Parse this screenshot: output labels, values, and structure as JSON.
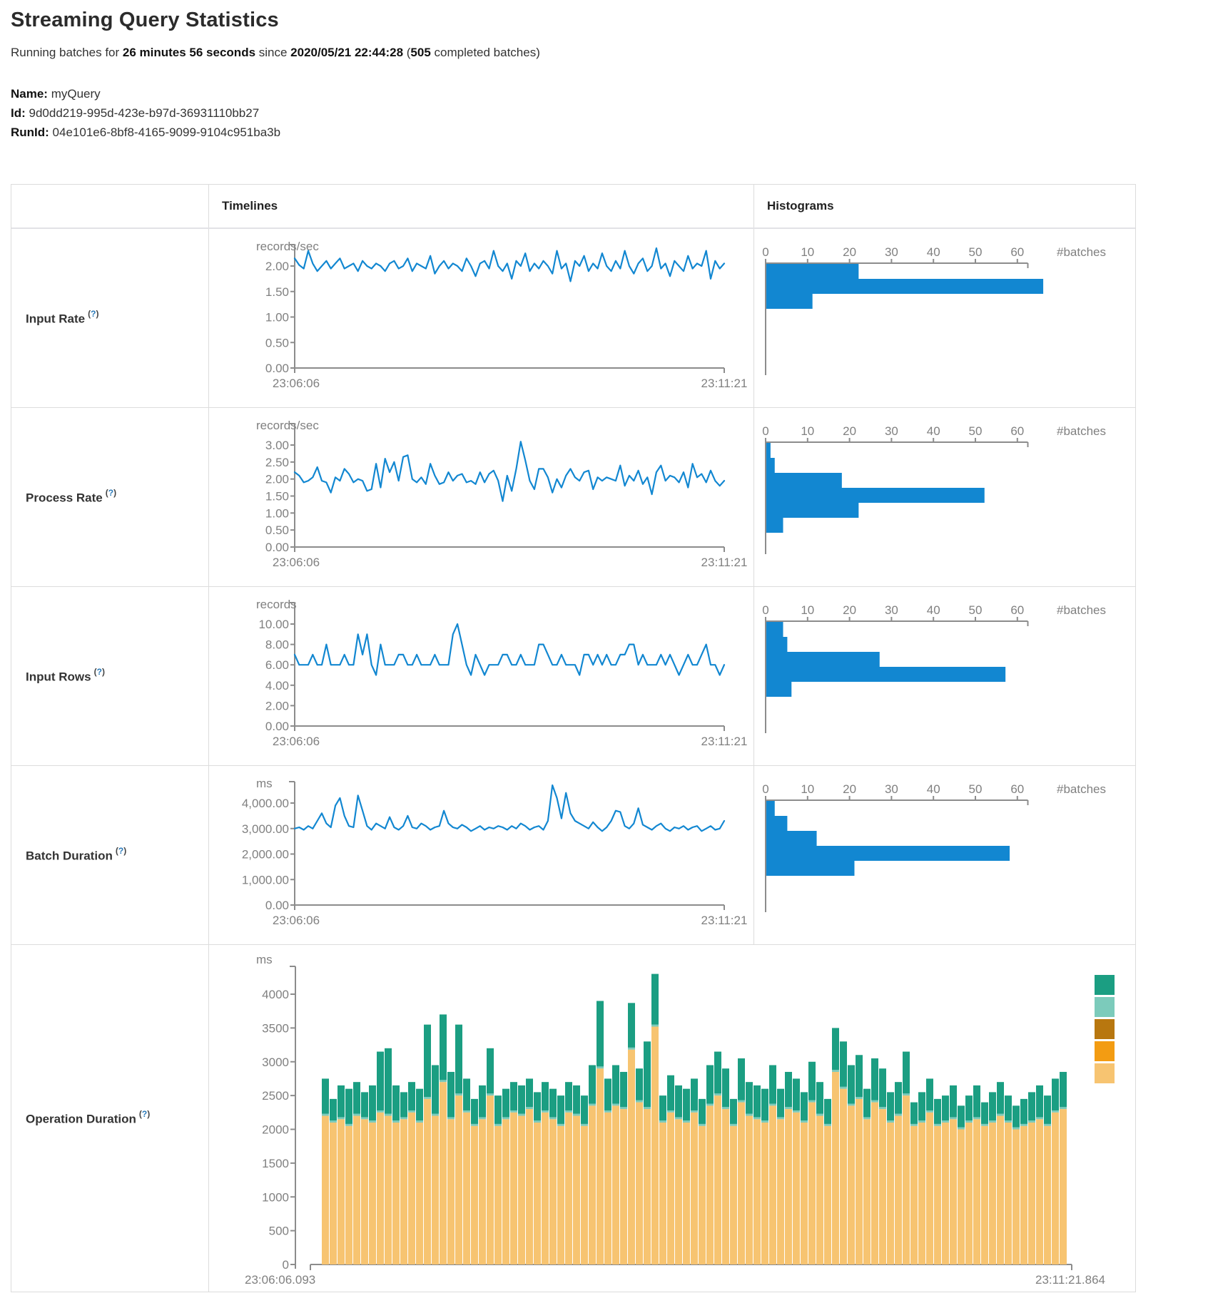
{
  "page": {
    "title": "Streaming Query Statistics"
  },
  "summary": {
    "prefix": "Running batches for ",
    "duration": "26 minutes 56 seconds",
    "mid": " since ",
    "start_time": "2020/05/21 22:44:28",
    "paren": " (",
    "batch_count": "505",
    "suffix": " completed batches)"
  },
  "query": {
    "name_label": "Name:",
    "name": " myQuery",
    "id_label": "Id:",
    "id": " 9d0dd219-995d-423e-b97d-36931110bb27",
    "runid_label": "RunId:",
    "runid": " 04e101e6-8bf8-4165-9099-9104c951ba3b"
  },
  "table": {
    "col_timelines": "Timelines",
    "col_histograms": "Histograms"
  },
  "help": {
    "open": "(",
    "q": "?",
    "close": ")"
  },
  "colors": {
    "line_blue": "#1287d1",
    "bar_blue": "#1287d1",
    "axis": "#8c8c8c",
    "tick_text": "#808080",
    "teal": "#1b9e82",
    "light_teal": "#7ccbbb",
    "brown": "#b8770f",
    "orange": "#f39c12",
    "tan": "#f7c471",
    "border": "#dcdcdc"
  },
  "rows": [
    {
      "label": "Input Rate",
      "timeline": {
        "type": "line",
        "unit": "records/sec",
        "x_start": "23:06:06",
        "x_end": "23:11:21",
        "y_ticks": [
          {
            "v": 2,
            "label": "2.00"
          },
          {
            "v": 1.5,
            "label": "1.50"
          },
          {
            "v": 1,
            "label": "1.00"
          },
          {
            "v": 0.5,
            "label": "0.50"
          },
          {
            "v": 0,
            "label": "0.00"
          }
        ],
        "y_top": 2,
        "values": [
          2.15,
          2.02,
          1.95,
          2.3,
          2.05,
          1.9,
          2.0,
          2.1,
          1.95,
          2.05,
          2.15,
          1.95,
          2.0,
          2.05,
          1.9,
          2.1,
          2.0,
          1.95,
          2.05,
          2.0,
          1.9,
          2.05,
          2.1,
          1.95,
          2.0,
          2.15,
          1.9,
          2.05,
          2.0,
          1.95,
          2.2,
          1.85,
          2.0,
          2.1,
          1.95,
          2.05,
          2.0,
          1.9,
          2.15,
          2.0,
          1.8,
          2.05,
          2.1,
          1.95,
          2.3,
          2.0,
          1.9,
          2.05,
          1.75,
          2.1,
          2.0,
          2.25,
          1.9,
          2.05,
          1.95,
          2.1,
          2.0,
          1.85,
          2.3,
          1.95,
          2.05,
          1.7,
          2.1,
          2.0,
          2.2,
          1.9,
          2.05,
          1.95,
          2.25,
          2.0,
          1.9,
          2.1,
          1.95,
          2.3,
          2.0,
          1.85,
          2.05,
          2.15,
          1.9,
          2.0,
          2.35,
          1.95,
          2.05,
          1.8,
          2.1,
          2.0,
          1.9,
          2.2,
          1.95,
          2.05,
          2.0,
          2.3,
          1.75,
          2.1,
          1.95,
          2.05
        ]
      },
      "histogram": {
        "type": "bar",
        "unit": "#batches",
        "x_tick_labels": [
          "0",
          "10",
          "20",
          "30",
          "40",
          "50",
          "60"
        ],
        "bars": [
          22,
          66,
          11
        ]
      }
    },
    {
      "label": "Process Rate",
      "timeline": {
        "type": "line",
        "unit": "records/sec",
        "x_start": "23:06:06",
        "x_end": "23:11:21",
        "y_ticks": [
          {
            "v": 3,
            "label": "3.00"
          },
          {
            "v": 2.5,
            "label": "2.50"
          },
          {
            "v": 2,
            "label": "2.00"
          },
          {
            "v": 1.5,
            "label": "1.50"
          },
          {
            "v": 1,
            "label": "1.00"
          },
          {
            "v": 0.5,
            "label": "0.50"
          },
          {
            "v": 0,
            "label": "0.00"
          }
        ],
        "y_top": 3,
        "values": [
          2.2,
          2.1,
          1.9,
          1.95,
          2.05,
          2.35,
          1.95,
          1.9,
          1.6,
          2.05,
          1.95,
          2.3,
          2.15,
          1.9,
          2.0,
          1.95,
          1.65,
          1.7,
          2.45,
          1.75,
          2.6,
          2.2,
          2.5,
          1.95,
          2.65,
          2.7,
          2.0,
          1.9,
          2.05,
          1.85,
          2.45,
          2.1,
          1.85,
          1.9,
          2.2,
          1.95,
          2.1,
          2.15,
          1.9,
          1.95,
          1.85,
          2.2,
          1.9,
          2.15,
          2.25,
          1.95,
          1.35,
          2.1,
          1.65,
          2.3,
          3.1,
          2.55,
          1.95,
          1.7,
          2.3,
          2.3,
          2.05,
          1.6,
          2.0,
          1.75,
          2.1,
          2.3,
          2.05,
          1.95,
          2.2,
          2.25,
          1.7,
          2.05,
          1.95,
          2.05,
          2.0,
          1.95,
          2.4,
          1.8,
          2.1,
          1.95,
          2.25,
          1.85,
          2.05,
          1.55,
          2.2,
          2.4,
          1.95,
          2.1,
          2.05,
          1.9,
          2.2,
          1.75,
          2.45,
          2.05,
          2.15,
          1.9,
          2.25,
          1.95,
          1.8,
          1.95
        ]
      },
      "histogram": {
        "type": "bar",
        "unit": "#batches",
        "x_tick_labels": [
          "0",
          "10",
          "20",
          "30",
          "40",
          "50",
          "60"
        ],
        "bars": [
          1,
          2,
          18,
          52,
          22,
          4
        ]
      }
    },
    {
      "label": "Input Rows",
      "timeline": {
        "type": "line",
        "unit": "records",
        "x_start": "23:06:06",
        "x_end": "23:11:21",
        "y_ticks": [
          {
            "v": 10,
            "label": "10.00"
          },
          {
            "v": 8,
            "label": "8.00"
          },
          {
            "v": 6,
            "label": "6.00"
          },
          {
            "v": 4,
            "label": "4.00"
          },
          {
            "v": 2,
            "label": "2.00"
          },
          {
            "v": 0,
            "label": "0.00"
          }
        ],
        "y_top": 10,
        "values": [
          7,
          6,
          6,
          6,
          7,
          6,
          6,
          8,
          6,
          6,
          6,
          7,
          6,
          6,
          9,
          7,
          9,
          6,
          5,
          8,
          6,
          6,
          6,
          7,
          7,
          6,
          6,
          7,
          6,
          6,
          6,
          7,
          6,
          6,
          6,
          9,
          10,
          8,
          6,
          5,
          7,
          6,
          5,
          6,
          6,
          6,
          7,
          7,
          6,
          6,
          7,
          6,
          6,
          6,
          8,
          8,
          7,
          6,
          6,
          7,
          6,
          6,
          6,
          5,
          7,
          7,
          6,
          7,
          6,
          7,
          6,
          6,
          7,
          7,
          8,
          8,
          6,
          7,
          6,
          6,
          6,
          7,
          6,
          7,
          6,
          5,
          6,
          7,
          6,
          6,
          7,
          8,
          6,
          6,
          5,
          6
        ]
      },
      "histogram": {
        "type": "bar",
        "unit": "#batches",
        "x_tick_labels": [
          "0",
          "10",
          "20",
          "30",
          "40",
          "50",
          "60"
        ],
        "bars": [
          4,
          5,
          27,
          57,
          6
        ]
      }
    },
    {
      "label": "Batch Duration",
      "timeline": {
        "type": "line",
        "unit": "ms",
        "x_start": "23:06:06",
        "x_end": "23:11:21",
        "y_ticks": [
          {
            "v": 4000,
            "label": "4,000.00"
          },
          {
            "v": 3000,
            "label": "3,000.00"
          },
          {
            "v": 2000,
            "label": "2,000.00"
          },
          {
            "v": 1000,
            "label": "1,000.00"
          },
          {
            "v": 0,
            "label": "0.00"
          }
        ],
        "y_top": 4000,
        "values": [
          3000,
          3050,
          2950,
          3100,
          3000,
          3300,
          3600,
          3200,
          3050,
          3900,
          4200,
          3500,
          3100,
          3050,
          4300,
          3700,
          3100,
          2950,
          3200,
          3100,
          3000,
          3450,
          3050,
          2950,
          3100,
          3500,
          3050,
          3000,
          3200,
          3100,
          2950,
          3050,
          3100,
          3700,
          3200,
          3050,
          3000,
          3150,
          3050,
          2900,
          3000,
          3100,
          2950,
          3050,
          3000,
          3100,
          3050,
          2950,
          3100,
          3000,
          3200,
          3100,
          2950,
          3050,
          3100,
          2950,
          3300,
          4700,
          4200,
          3400,
          4400,
          3600,
          3300,
          3200,
          3100,
          3000,
          3250,
          3050,
          2900,
          3050,
          3300,
          3700,
          3650,
          3100,
          3000,
          3200,
          3800,
          3150,
          3050,
          2950,
          3100,
          3200,
          3000,
          2900,
          3050,
          3000,
          3100,
          2950,
          3050,
          3100,
          2900,
          3000,
          3100,
          2950,
          3000,
          3300
        ]
      },
      "histogram": {
        "type": "bar",
        "unit": "#batches",
        "x_tick_labels": [
          "0",
          "10",
          "20",
          "30",
          "40",
          "50",
          "60"
        ],
        "bars": [
          2,
          5,
          12,
          58,
          21
        ]
      }
    }
  ],
  "operation": {
    "label": "Operation Duration",
    "chart": {
      "type": "stacked-bar",
      "unit": "ms",
      "x_start": "23:06:06.093",
      "x_end": "23:11:21.864",
      "y_ticks": [
        {
          "v": 4000,
          "label": "4000"
        },
        {
          "v": 3500,
          "label": "3500"
        },
        {
          "v": 3000,
          "label": "3000"
        },
        {
          "v": 2500,
          "label": "2500"
        },
        {
          "v": 2000,
          "label": "2000"
        },
        {
          "v": 1500,
          "label": "1500"
        },
        {
          "v": 1000,
          "label": "1000"
        },
        {
          "v": 500,
          "label": "500"
        },
        {
          "v": 0,
          "label": "0"
        }
      ],
      "y_top": 4000,
      "sliver": 30,
      "tan": [
        2200,
        2100,
        2150,
        2050,
        2200,
        2150,
        2100,
        2250,
        2200,
        2100,
        2150,
        2250,
        2100,
        2450,
        2200,
        2700,
        2150,
        2500,
        2250,
        2050,
        2150,
        2500,
        2050,
        2150,
        2250,
        2200,
        2300,
        2100,
        2250,
        2150,
        2050,
        2250,
        2200,
        2050,
        2350,
        2900,
        2250,
        2350,
        2300,
        3180,
        2400,
        2300,
        3520,
        2100,
        2250,
        2150,
        2100,
        2250,
        2050,
        2350,
        2500,
        2300,
        2050,
        2400,
        2200,
        2150,
        2100,
        2350,
        2150,
        2300,
        2250,
        2100,
        2400,
        2200,
        2050,
        2850,
        2600,
        2350,
        2450,
        2150,
        2400,
        2300,
        2100,
        2200,
        2500,
        2050,
        2100,
        2250,
        2050,
        2100,
        2150,
        2000,
        2100,
        2150,
        2050,
        2100,
        2200,
        2100,
        2000,
        2050,
        2100,
        2150,
        2050,
        2250,
        2300
      ],
      "total": [
        2750,
        2450,
        2650,
        2600,
        2700,
        2550,
        2650,
        3150,
        3200,
        2650,
        2550,
        2700,
        2600,
        3550,
        2950,
        3700,
        2850,
        3550,
        2750,
        2450,
        2650,
        3200,
        2500,
        2600,
        2700,
        2650,
        2750,
        2550,
        2700,
        2600,
        2500,
        2700,
        2650,
        2500,
        2950,
        3900,
        2750,
        2950,
        2850,
        3870,
        2900,
        3300,
        4300,
        2500,
        2800,
        2650,
        2600,
        2750,
        2450,
        2950,
        3150,
        2900,
        2450,
        3050,
        2700,
        2650,
        2600,
        2950,
        2600,
        2850,
        2750,
        2550,
        3000,
        2700,
        2450,
        3500,
        3300,
        2950,
        3100,
        2600,
        3050,
        2900,
        2550,
        2700,
        3150,
        2400,
        2550,
        2750,
        2450,
        2500,
        2650,
        2350,
        2500,
        2650,
        2400,
        2550,
        2700,
        2500,
        2350,
        2450,
        2550,
        2650,
        2500,
        2750,
        2850
      ],
      "legend_colors": [
        "#1b9e82",
        "#7ccbbb",
        "#b8770f",
        "#f39c12",
        "#f7c471"
      ]
    }
  }
}
